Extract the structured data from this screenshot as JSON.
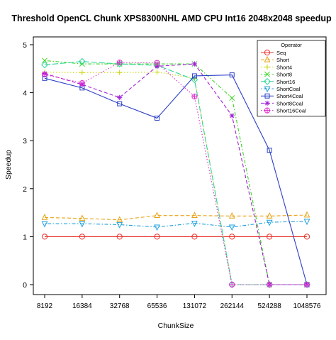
{
  "chart_data": {
    "type": "line",
    "title": "Threshold OpenCL Chunk XPS8300NHL AMD CPU Int16 2048x2048 speedup",
    "xlabel": "ChunkSize",
    "ylabel": "Speedup",
    "categories": [
      "8192",
      "16384",
      "32768",
      "65536",
      "131072",
      "262144",
      "524288",
      "1048576"
    ],
    "ylim": [
      -0.1,
      5.05
    ],
    "yticks": [
      0,
      1,
      2,
      3,
      4,
      5
    ],
    "grid": false,
    "legend": {
      "title": "Operator",
      "position": "top-right"
    },
    "series": [
      {
        "name": "Seq",
        "color": "#e8312a",
        "marker": "circle-open",
        "dash": "solid",
        "values": [
          1.0,
          1.0,
          1.0,
          1.0,
          1.0,
          1.0,
          1.0,
          1.0
        ]
      },
      {
        "name": "Short",
        "color": "#e8a317",
        "marker": "triangle-open",
        "dash": "dashed",
        "values": [
          1.4,
          1.38,
          1.35,
          1.44,
          1.44,
          1.43,
          1.43,
          1.45
        ]
      },
      {
        "name": "Short4",
        "color": "#c8d400",
        "marker": "plus",
        "dash": "dotted",
        "values": [
          4.43,
          4.42,
          4.42,
          4.43,
          4.3,
          0.0,
          0.0,
          0.0
        ]
      },
      {
        "name": "Short8",
        "color": "#3ed627",
        "marker": "cross",
        "dash": "dotdash",
        "values": [
          4.67,
          4.6,
          4.6,
          4.6,
          4.6,
          3.89,
          0.0,
          0.0
        ]
      },
      {
        "name": "Short16",
        "color": "#2fd69a",
        "marker": "diamond-open",
        "dash": "longdash",
        "values": [
          4.58,
          4.65,
          4.6,
          4.57,
          4.27,
          0.0,
          0.0,
          0.0
        ]
      },
      {
        "name": "ShortCoal",
        "color": "#1fa0dc",
        "marker": "triangle-down-open",
        "dash": "dotdash",
        "values": [
          1.27,
          1.27,
          1.25,
          1.2,
          1.28,
          1.2,
          1.3,
          1.32
        ]
      },
      {
        "name": "Short4Coal",
        "color": "#2b3fc8",
        "marker": "square-open",
        "dash": "solid",
        "values": [
          4.3,
          4.1,
          3.77,
          3.47,
          4.35,
          4.37,
          2.8,
          0.0
        ]
      },
      {
        "name": "Short8Coal",
        "color": "#a21fd6",
        "marker": "star",
        "dash": "dashed",
        "values": [
          4.4,
          4.17,
          3.9,
          4.55,
          4.6,
          3.52,
          0.0,
          0.0
        ]
      },
      {
        "name": "Short16Coal",
        "color": "#e02ad0",
        "marker": "circle-plus",
        "dash": "dotted",
        "values": [
          4.38,
          4.2,
          4.63,
          4.62,
          3.92,
          0.0,
          0.0,
          0.0
        ]
      }
    ]
  }
}
